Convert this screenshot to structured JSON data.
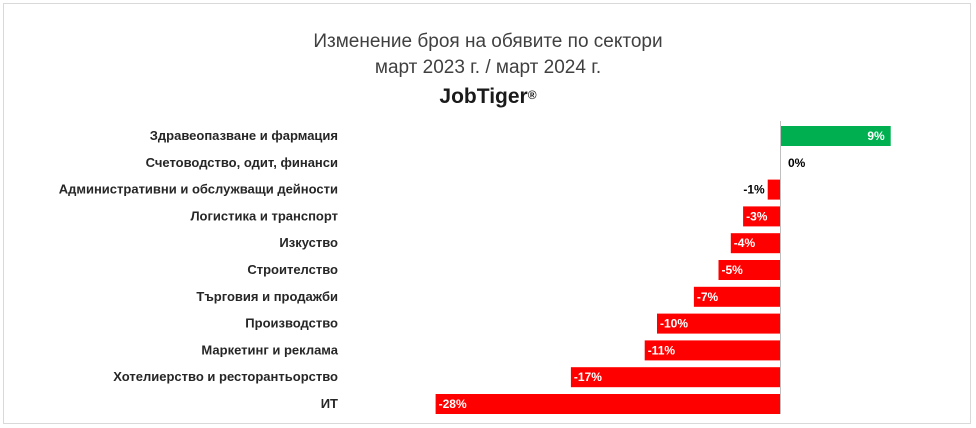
{
  "chart_data": {
    "type": "bar",
    "orientation": "horizontal",
    "title": "Изменение броя на обявите по сектори",
    "subtitle": "март 2023 г. / март 2024 г.",
    "brand": "JobTiger",
    "brand_mark": "®",
    "categories": [
      "Здравеопазване и фармация",
      "Счетоводство, одит, финанси",
      "Административни и обслужващи дейности",
      "Логистика и транспорт",
      "Изкуство",
      "Строителство",
      "Търговия и продажби",
      "Производство",
      "Маркетинг и реклама",
      "Хотелиерство и ресторантьорство",
      "ИТ"
    ],
    "values": [
      9,
      0,
      -1,
      -3,
      -4,
      -5,
      -7,
      -10,
      -11,
      -17,
      -28
    ],
    "value_labels": [
      "9%",
      "0%",
      "-1%",
      "-3%",
      "-4%",
      "-5%",
      "-7%",
      "-10%",
      "-11%",
      "-17%",
      "-28%"
    ],
    "xlim": [
      -28,
      9
    ],
    "colors": {
      "positive": "#00b050",
      "negative": "#ff0000",
      "axis": "#bfbfbf"
    },
    "grid": false,
    "legend": "none"
  }
}
